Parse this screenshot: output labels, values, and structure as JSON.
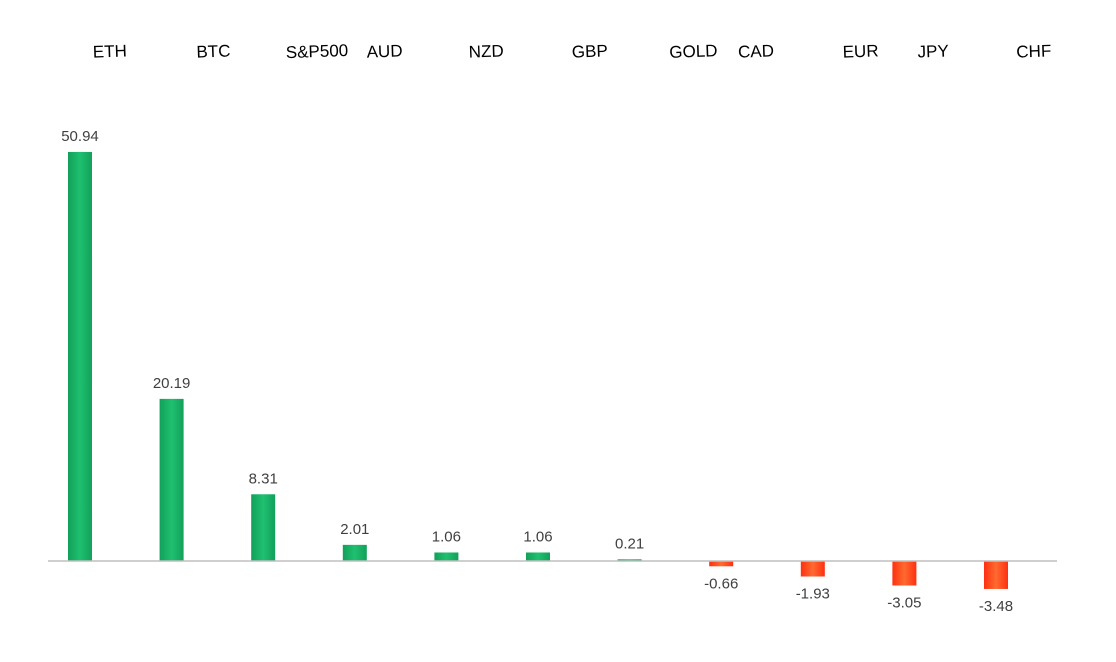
{
  "chart_data": {
    "type": "bar",
    "categories": [
      "ETH",
      "BTC",
      "S&P500",
      "AUD",
      "NZD",
      "GBP",
      "GOLD",
      "CAD",
      "EUR",
      "JPY",
      "CHF"
    ],
    "values": [
      50.94,
      20.19,
      8.31,
      2.01,
      1.06,
      1.06,
      0.21,
      -0.66,
      -1.93,
      -3.05,
      -3.48
    ],
    "value_labels": [
      "50.94",
      "20.19",
      "8.31",
      "2.01",
      "1.06",
      "1.06",
      "0.21",
      "-0.66",
      "-1.93",
      "-3.05",
      "-3.48"
    ],
    "title": "",
    "xlabel": "",
    "ylabel": "",
    "ylim": [
      -3.48,
      50.94
    ],
    "grid": false,
    "legend": "none",
    "category_labels_position": "top",
    "colors": {
      "positive_top": "#1db86a",
      "positive_mid": "#0e9a55",
      "negative_top": "#ff3a1a",
      "negative_mid": "#ff5a2a",
      "baseline": "#bfbfbf"
    }
  }
}
